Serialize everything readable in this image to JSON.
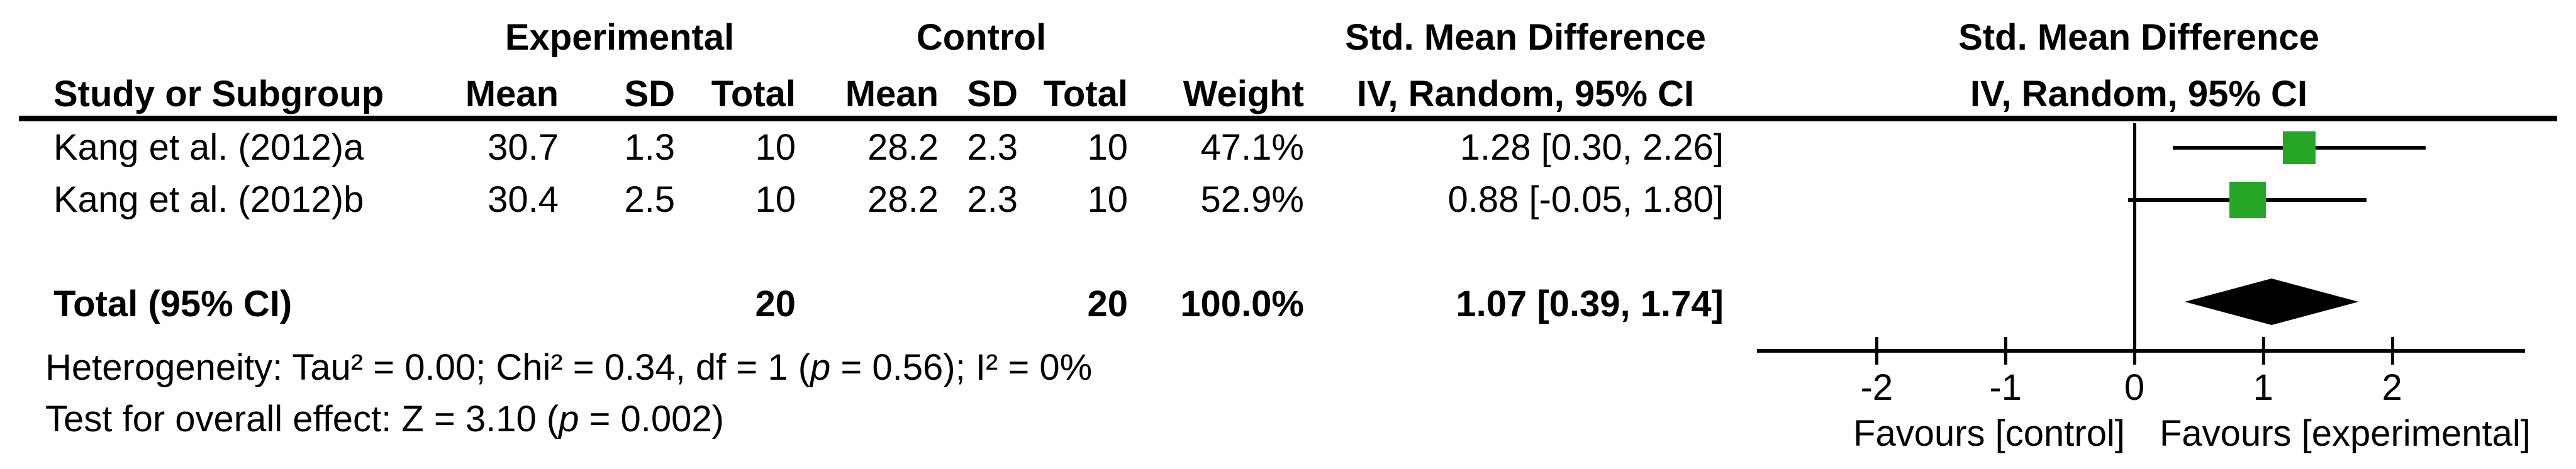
{
  "table": {
    "columns": {
      "study": "Study or Subgroup",
      "exp_group": "Experimental",
      "ctrl_group": "Control",
      "exp_mean": "Mean",
      "exp_sd": "SD",
      "exp_total": "Total",
      "ctrl_mean": "Mean",
      "ctrl_sd": "SD",
      "ctrl_total": "Total",
      "weight": "Weight",
      "smd_text_title": "Std. Mean Difference",
      "smd_text_sub": "IV, Random, 95% CI",
      "smd_plot_title": "Std. Mean Difference",
      "smd_plot_sub": "IV, Random, 95% CI"
    },
    "studies": [
      {
        "name": "Kang et al. (2012)a",
        "exp_mean": "30.7",
        "exp_sd": "1.3",
        "exp_total": "10",
        "ctrl_mean": "28.2",
        "ctrl_sd": "2.3",
        "ctrl_total": "10",
        "weight": "47.1%",
        "ci_text": "1.28 [0.30, 2.26]"
      },
      {
        "name": "Kang et al. (2012)b",
        "exp_mean": "30.4",
        "exp_sd": "2.5",
        "exp_total": "10",
        "ctrl_mean": "28.2",
        "ctrl_sd": "2.3",
        "ctrl_total": "10",
        "weight": "52.9%",
        "ci_text": "0.88 [-0.05, 1.80]"
      }
    ],
    "total": {
      "label": "Total (95% CI)",
      "exp_total": "20",
      "ctrl_total": "20",
      "weight": "100.0%",
      "ci_text": "1.07 [0.39, 1.74]"
    }
  },
  "footnotes": {
    "heterogeneity_pre": "Heterogeneity: Tau² = 0.00; Chi² = 0.34, df = 1 (",
    "heterogeneity_p": "p",
    "heterogeneity_post": " = 0.56); I² = 0%",
    "overall_pre": "Test for overall effect: Z = 3.10 (",
    "overall_p": "p",
    "overall_post": " = 0.002)"
  },
  "chart_data": {
    "type": "forest",
    "effect_measure": "Std. Mean Difference",
    "model": "IV, Random, 95% CI",
    "studies": [
      {
        "name": "Kang et al. (2012)a",
        "estimate": 1.28,
        "ci": [
          0.3,
          2.26
        ],
        "weight_pct": 47.1
      },
      {
        "name": "Kang et al. (2012)b",
        "estimate": 0.88,
        "ci": [
          -0.05,
          1.8
        ],
        "weight_pct": 52.9
      }
    ],
    "total": {
      "label": "Total (95% CI)",
      "estimate": 1.07,
      "ci": [
        0.39,
        1.74
      ],
      "weight_pct": 100.0
    },
    "heterogeneity": {
      "tau2": 0.0,
      "chi2": 0.34,
      "df": 1,
      "p": 0.56,
      "i2_pct": 0
    },
    "overall_effect": {
      "z": 3.1,
      "p": 0.002
    },
    "x_ticks": [
      -2,
      -1,
      0,
      1,
      2
    ],
    "x_tick_labels": [
      "-2",
      "-1",
      "0",
      "1",
      "2"
    ],
    "x_range": [
      -2.93,
      3.03
    ],
    "favours_left": "Favours [control]",
    "favours_right": "Favours [experimental]",
    "marker_color": "#27a527",
    "line_color": "#000000",
    "diamond_color": "#000000"
  }
}
